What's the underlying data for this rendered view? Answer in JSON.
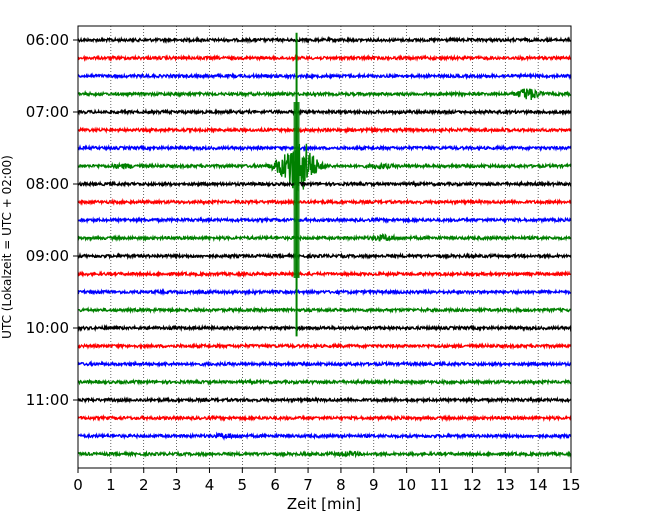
{
  "chart_data": {
    "type": "line",
    "title": "",
    "xlabel": "Zeit  [min]",
    "ylabel": "UTC (Lokalzeit = UTC + 02:00)",
    "xlim": [
      0,
      15
    ],
    "x_ticks": [
      "0",
      "1",
      "2",
      "3",
      "4",
      "5",
      "6",
      "7",
      "8",
      "9",
      "10",
      "11",
      "12",
      "13",
      "14",
      "15"
    ],
    "y_ticks": [
      "06:00",
      "07:00",
      "08:00",
      "09:00",
      "10:00",
      "11:00"
    ],
    "grid": "vertical dotted",
    "trace_colors": [
      "#000000",
      "#ff0000",
      "#0000ff",
      "#008000"
    ],
    "trace_interval_minutes": 15,
    "traces": [
      {
        "start": "06:00",
        "color": "#000000"
      },
      {
        "start": "06:15",
        "color": "#ff0000"
      },
      {
        "start": "06:30",
        "color": "#0000ff"
      },
      {
        "start": "06:45",
        "color": "#008000",
        "events": [
          {
            "minute": 13.7,
            "amplitude": 1.8
          }
        ]
      },
      {
        "start": "07:00",
        "color": "#000000"
      },
      {
        "start": "07:15",
        "color": "#ff0000"
      },
      {
        "start": "07:30",
        "color": "#0000ff"
      },
      {
        "start": "07:45",
        "color": "#008000",
        "events": [
          {
            "minute": 1.4,
            "amplitude": 0.5
          },
          {
            "minute": 6.2,
            "amplitude": 1.6
          },
          {
            "minute": 6.75,
            "amplitude": 9.0
          },
          {
            "minute": 9.2,
            "amplitude": 0.6
          }
        ]
      },
      {
        "start": "08:00",
        "color": "#000000"
      },
      {
        "start": "08:15",
        "color": "#ff0000"
      },
      {
        "start": "08:30",
        "color": "#0000ff"
      },
      {
        "start": "08:45",
        "color": "#008000",
        "events": [
          {
            "minute": 9.3,
            "amplitude": 0.8
          }
        ]
      },
      {
        "start": "09:00",
        "color": "#000000"
      },
      {
        "start": "09:15",
        "color": "#ff0000"
      },
      {
        "start": "09:30",
        "color": "#0000ff"
      },
      {
        "start": "09:45",
        "color": "#008000"
      },
      {
        "start": "10:00",
        "color": "#000000"
      },
      {
        "start": "10:15",
        "color": "#ff0000"
      },
      {
        "start": "10:30",
        "color": "#0000ff"
      },
      {
        "start": "10:45",
        "color": "#008000"
      },
      {
        "start": "11:00",
        "color": "#000000"
      },
      {
        "start": "11:15",
        "color": "#ff0000"
      },
      {
        "start": "11:30",
        "color": "#0000ff",
        "events": [
          {
            "minute": 4.5,
            "amplitude": 0.5
          }
        ]
      },
      {
        "start": "11:45",
        "color": "#008000",
        "events": [
          {
            "minute": 8.2,
            "amplitude": 0.5
          }
        ]
      }
    ],
    "spike": {
      "minute": 6.65,
      "color": "#008000",
      "from_time": "05:54",
      "to_time": "10:07"
    }
  }
}
